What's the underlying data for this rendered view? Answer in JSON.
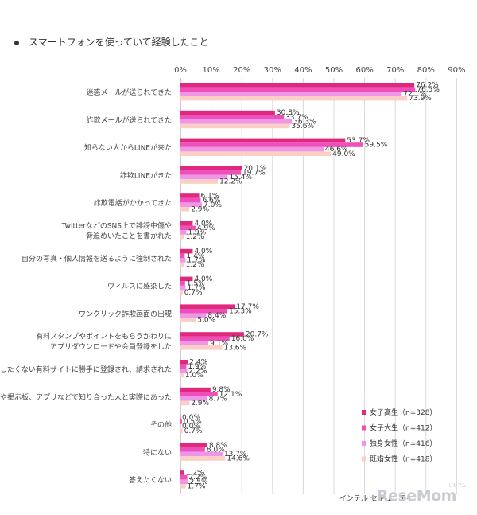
{
  "heading": "スマートフォンを使っていて経験したこと",
  "source": "インテル セキュリティ",
  "watermark": "ReseMom",
  "watermark_small": "リセマム",
  "chart_data": {
    "type": "bar",
    "orientation": "horizontal",
    "title": "スマートフォンを使っていて経験したこと",
    "xlim": [
      0,
      90
    ],
    "xticks": [
      "0%",
      "10%",
      "20%",
      "30%",
      "40%",
      "50%",
      "60%",
      "70%",
      "80%",
      "90%"
    ],
    "grid": true,
    "legend_position": "bottom-right",
    "categories": [
      [
        "迷惑メールが送られてきた"
      ],
      [
        "詐欺メールが送られてきた"
      ],
      [
        "知らない人からLINEが来た"
      ],
      [
        "詐欺LINEがきた"
      ],
      [
        "詐欺電話がかかってきた"
      ],
      [
        "TwitterなどのSNS上で誹謗中傷や",
        "脅迫めいたことを書かれた"
      ],
      [
        "自分の写真・個人情報を送るように強制された"
      ],
      [
        "ウィルスに感染した"
      ],
      [
        "ワンクリック詐欺画面の出現"
      ],
      [
        "有料スタンプやポイントをもらうかわりに",
        "アプリダウンロードや会員登録をした"
      ],
      [
        "登録したくない有料サイトに勝手に登録され、請求された"
      ],
      [
        "SNSや掲示板、アプリなどで知り合った人と実際にあった"
      ],
      [
        "その他"
      ],
      [
        "特にない"
      ],
      [
        "答えたくない"
      ]
    ],
    "series": [
      {
        "name": "女子高生（n=328）",
        "color": "#e0287d",
        "values": [
          76.2,
          30.8,
          53.7,
          20.1,
          6.1,
          4.0,
          4.0,
          4.0,
          17.7,
          20.7,
          2.4,
          9.8,
          0.0,
          8.8,
          1.2
        ]
      },
      {
        "name": "女子大生（n=412）",
        "color": "#ee4fbb",
        "values": [
          76.5,
          33.7,
          59.5,
          19.7,
          6.6,
          4.9,
          1.4,
          1.5,
          15.3,
          16.0,
          1.9,
          12.1,
          0.5,
          8.0,
          2.2
        ]
      },
      {
        "name": "独身女性（n=416）",
        "color": "#ee97e6",
        "values": [
          72.1,
          36.3,
          46.6,
          15.4,
          7.0,
          1.9,
          1.7,
          1.7,
          8.4,
          9.1,
          2.2,
          8.7,
          0.0,
          13.7,
          2.5
        ]
      },
      {
        "name": "既婚女性（n=418）",
        "color": "#fbcfc6",
        "values": [
          73.9,
          35.6,
          49.0,
          12.2,
          2.9,
          1.2,
          1.2,
          0.7,
          5.0,
          13.6,
          1.0,
          2.9,
          0.7,
          14.6,
          1.7
        ]
      }
    ],
    "value_labels": [
      [
        "76.2%",
        "30.8%",
        "53.7%",
        "20.1%",
        "6.1%",
        "4.0%",
        "4.0%",
        "4.0%",
        "17.7%",
        "20.7%",
        "2.4%",
        "9.8%",
        "0.0%",
        "8.8%",
        "1.2%"
      ],
      [
        "76.5%",
        "33.7%",
        "59.5%",
        "19.7%",
        "6.6%",
        "4.9%",
        "1.4%",
        "1.5%",
        "15.3%",
        "16.0%",
        "1.9%",
        "12.1%",
        "0.5%",
        "8.0%",
        "2.2%"
      ],
      [
        "72.1%",
        "36.3%",
        "46.6%",
        "15.4%",
        "7.0%",
        "1.9%",
        "1.7%",
        "1.7%",
        "8.4%",
        "9.1%",
        "2.2%",
        "8.7%",
        "0.0%",
        "13.7%",
        "2.5%"
      ],
      [
        "73.9%",
        "35.6%",
        "49.0%",
        "12.2%",
        "2.9%",
        "1.2%",
        "1.2%",
        "0.7%",
        "5.0%",
        "13.6%",
        "1.0%",
        "2.9%",
        "0.7%",
        "14.6%",
        "1.7%"
      ]
    ]
  }
}
